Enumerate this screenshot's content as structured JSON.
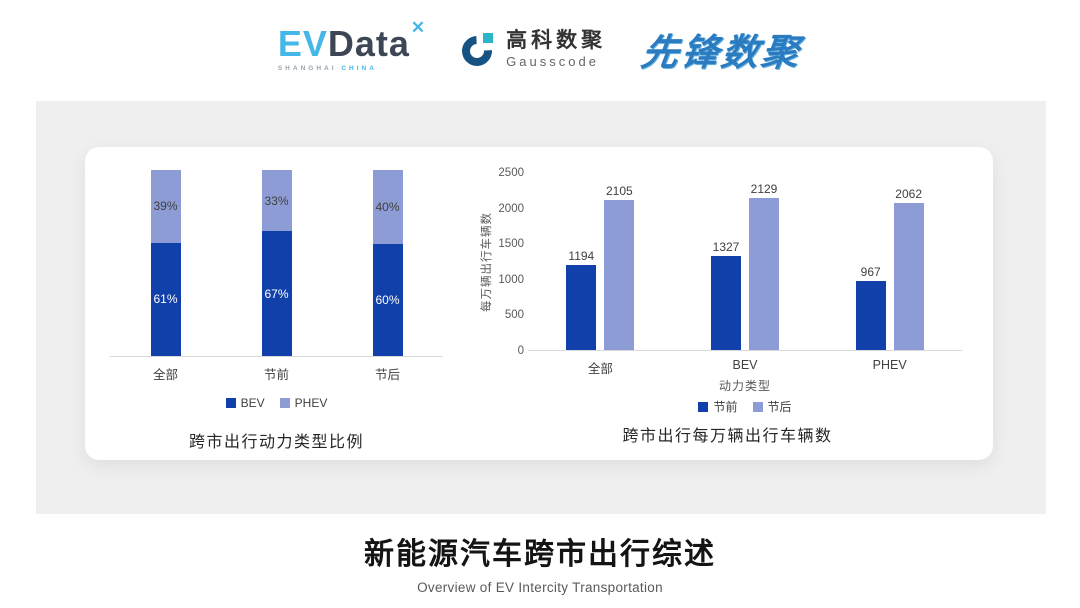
{
  "header": {
    "evdata": {
      "ev": "EV",
      "data": "Data",
      "spark_icon": "✕",
      "tagline_left": "SHANGHAI",
      "tagline_right": "CHINA"
    },
    "gausscode": {
      "cn": "高科数聚",
      "en": "Gausscode"
    },
    "xianfeng": "先锋数聚"
  },
  "chart_data": [
    {
      "type": "bar",
      "variant": "stacked-100",
      "title": "跨市出行动力类型比例",
      "categories": [
        "全部",
        "节前",
        "节后"
      ],
      "series": [
        {
          "name": "BEV",
          "color": "#1240aa",
          "label_color": "#ffffff",
          "values": [
            61,
            67,
            60
          ]
        },
        {
          "name": "PHEV",
          "color": "#8d9cd4",
          "label_color": "#404040",
          "values": [
            39,
            33,
            40
          ]
        }
      ],
      "value_unit": "%",
      "ylim": [
        0,
        100
      ],
      "grid": false,
      "legend_position": "bottom"
    },
    {
      "type": "bar",
      "variant": "grouped",
      "title": "跨市出行每万辆出行车辆数",
      "categories": [
        "全部",
        "BEV",
        "PHEV"
      ],
      "series": [
        {
          "name": "节前",
          "color": "#1240aa",
          "values": [
            1194,
            1327,
            967
          ]
        },
        {
          "name": "节后",
          "color": "#8d9cd4",
          "values": [
            2105,
            2129,
            2062
          ]
        }
      ],
      "xlabel": "动力类型",
      "ylabel": "每万辆出行车辆数",
      "ylim": [
        0,
        2500
      ],
      "yticks": [
        0,
        500,
        1000,
        1500,
        2000,
        2500
      ],
      "grid": false,
      "legend_position": "bottom"
    }
  ],
  "footer": {
    "title": "新能源汽车跨市出行综述",
    "subtitle": "Overview of EV Intercity Transportation"
  },
  "colors": {
    "series_dark": "#1240aa",
    "series_light": "#8d9cd4",
    "panel_bg": "#efefef",
    "card_bg": "#ffffff",
    "baseline": "#d9d9d9",
    "axis_text": "#595959",
    "label_text": "#404040",
    "evdata_blue": "#45b6e8",
    "evdata_dark": "#3d4654",
    "gauss_dark": "#175382",
    "gauss_teal": "#2ab5c8",
    "xianfeng_blue": "#2b7bc0"
  }
}
